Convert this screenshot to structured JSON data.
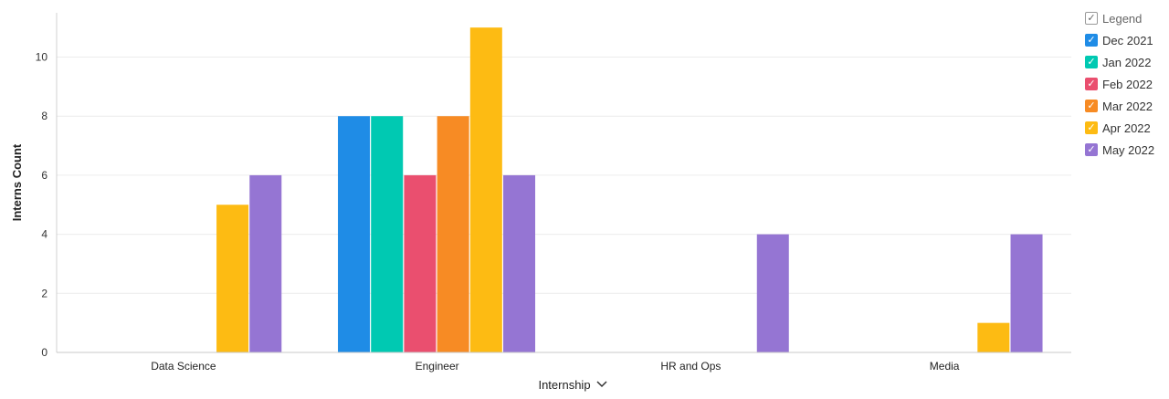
{
  "chart_data": {
    "type": "bar",
    "xlabel": "Internship",
    "ylabel": "Interns Count",
    "ylim": [
      0,
      11.5
    ],
    "yticks": [
      0,
      2,
      4,
      6,
      8,
      10
    ],
    "grid": true,
    "legend_position": "right",
    "categories": [
      "Data Science",
      "Engineer",
      "HR and Ops",
      "Media"
    ],
    "series": [
      {
        "name": "Dec 2021",
        "color": "#1f8ce6",
        "values": [
          0,
          8,
          0,
          0
        ]
      },
      {
        "name": "Jan 2022",
        "color": "#00c9b2",
        "values": [
          0,
          8,
          0,
          0
        ]
      },
      {
        "name": "Feb 2022",
        "color": "#ea4f6f",
        "values": [
          0,
          6,
          0,
          0
        ]
      },
      {
        "name": "Mar 2022",
        "color": "#f78b24",
        "values": [
          0,
          8,
          0,
          0
        ]
      },
      {
        "name": "Apr 2022",
        "color": "#fdbb13",
        "values": [
          5,
          11,
          0,
          1
        ]
      },
      {
        "name": "May 2022",
        "color": "#9575d3",
        "values": [
          6,
          6,
          4,
          4
        ]
      }
    ]
  },
  "legend": {
    "title": "Legend",
    "check": "✓",
    "dropdown_icon": "chevron-down-icon"
  }
}
